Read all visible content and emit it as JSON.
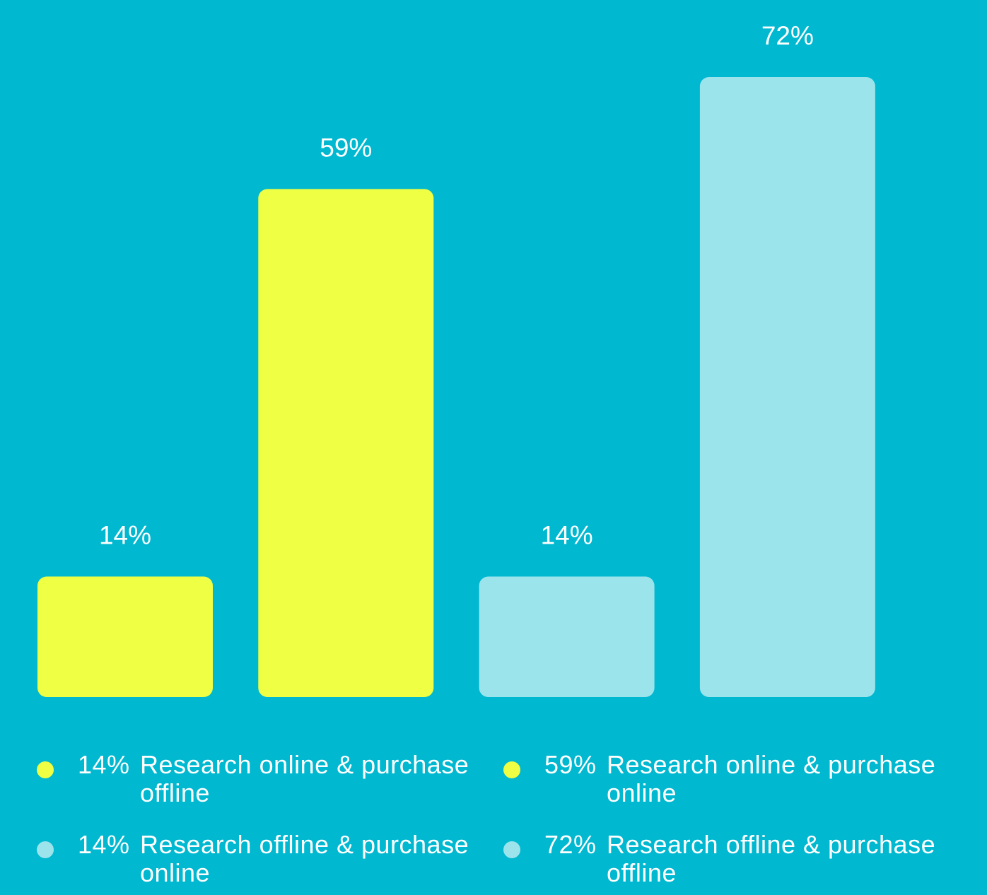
{
  "colors": {
    "background": "#00B8D0",
    "yellow": "#EEFF44",
    "light_blue": "#9CE4EC",
    "text": "#FFFFFF"
  },
  "chart_data": {
    "type": "bar",
    "categories": [
      "Research online & purchase offline",
      "Research online & purchase online",
      "Research offline & purchase online",
      "Research offline & purchase offline"
    ],
    "values": [
      14,
      59,
      14,
      72
    ],
    "data_labels": [
      "14%",
      "59%",
      "14%",
      "72%"
    ],
    "bar_colors": [
      "#EEFF44",
      "#EEFF44",
      "#9CE4EC",
      "#9CE4EC"
    ],
    "unit": "%",
    "ylim": [
      0,
      72
    ],
    "grid": false,
    "legend_position": "bottom"
  },
  "legend": [
    {
      "value": "14%",
      "label": "Research online & purchase offline",
      "color": "#EEFF44"
    },
    {
      "value": "59%",
      "label": "Research online & purchase online",
      "color": "#EEFF44"
    },
    {
      "value": "14%",
      "label": "Research offline & purchase online",
      "color": "#9CE4EC"
    },
    {
      "value": "72%",
      "label": "Research offline & purchase offline",
      "color": "#9CE4EC"
    }
  ]
}
